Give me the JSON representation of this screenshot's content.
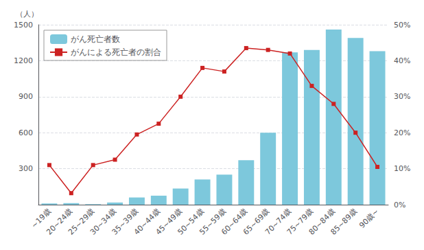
{
  "chart_data": {
    "type": "bar",
    "categories": [
      "~19歳",
      "20~24歳",
      "25~29歳",
      "30~34歳",
      "35~39歳",
      "40~44歳",
      "45~49歳",
      "50~54歳",
      "55~59歳",
      "60~64歳",
      "65~69歳",
      "70~74歳",
      "75~79歳",
      "80~84歳",
      "85~89歳",
      "90歳~"
    ],
    "series": [
      {
        "name": "がん死亡者数",
        "type": "bar",
        "color": "#7DC8DC",
        "values": [
          10,
          13,
          5,
          18,
          60,
          75,
          135,
          210,
          250,
          370,
          600,
          1270,
          1290,
          1460,
          1390,
          1280
        ]
      },
      {
        "name": "がんによる死亡者の割合",
        "type": "line",
        "color": "#CC2222",
        "marker": "square",
        "axis": "y2",
        "values": [
          11.0,
          3.2,
          11.0,
          12.5,
          19.5,
          22.5,
          30.0,
          38.0,
          37.0,
          43.5,
          43.0,
          42.0,
          33.0,
          28.0,
          20.0,
          10.5
        ]
      }
    ],
    "ylabel": "（人）",
    "ylim": [
      0,
      1500
    ],
    "yticks": [
      300,
      600,
      900,
      1200,
      1500
    ],
    "y2lim": [
      0,
      50
    ],
    "y2ticks": [
      {
        "value": 0,
        "label": "0%"
      },
      {
        "value": 10,
        "label": "10%"
      },
      {
        "value": 20,
        "label": "20%"
      },
      {
        "value": 30,
        "label": "30%"
      },
      {
        "value": 40,
        "label": "40%"
      },
      {
        "value": 50,
        "label": "50%"
      }
    ],
    "grid": true,
    "legend": "upper left"
  }
}
